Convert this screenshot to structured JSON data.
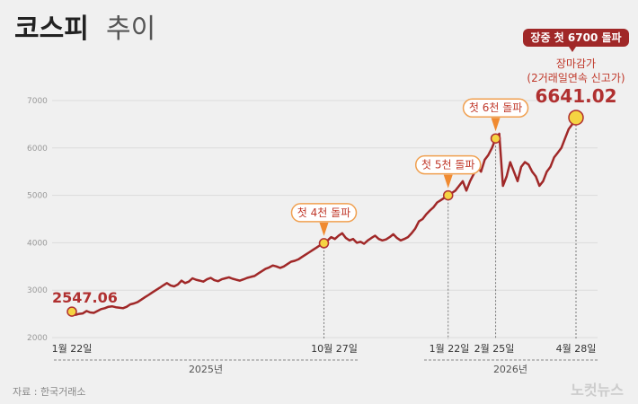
{
  "title": {
    "main": "코스피",
    "sub": "추이"
  },
  "chart_data": {
    "type": "line",
    "ylim": [
      2000,
      7000
    ],
    "yticks": [
      2000,
      3000,
      4000,
      5000,
      6000,
      7000
    ],
    "grid": true,
    "series_color": "#a02828",
    "x_tick_labels": [
      "1월 22일",
      "10월 27일",
      "1월 22일",
      "2월 25일",
      "4월 28일"
    ],
    "year_labels": [
      "2025년",
      "2026년"
    ],
    "series": [
      {
        "values": [
          2547,
          2480,
          2500,
          2510,
          2560,
          2530,
          2520,
          2560,
          2600,
          2620,
          2650,
          2660,
          2640,
          2630,
          2620,
          2650,
          2700,
          2720,
          2750,
          2800,
          2850,
          2900,
          2950,
          3000,
          3050,
          3100,
          3150,
          3100,
          3080,
          3120,
          3200,
          3150,
          3180,
          3250,
          3220,
          3200,
          3180,
          3230,
          3260,
          3210,
          3190,
          3230,
          3250,
          3270,
          3240,
          3220,
          3200,
          3230,
          3260,
          3280,
          3300,
          3350,
          3400,
          3450,
          3480,
          3520,
          3500,
          3470,
          3500,
          3550,
          3600,
          3620,
          3650,
          3700,
          3750,
          3800,
          3850,
          3900,
          3950,
          3990,
          4050,
          4120,
          4080,
          4150,
          4200,
          4100,
          4050,
          4080,
          4000,
          4020,
          3980,
          4050,
          4100,
          4150,
          4080,
          4050,
          4070,
          4120,
          4180,
          4100,
          4050,
          4080,
          4120,
          4200,
          4300,
          4450,
          4500,
          4600,
          4680,
          4750,
          4850,
          4900,
          4950,
          5000,
          5050,
          5100,
          5200,
          5300,
          5100,
          5300,
          5450,
          5600,
          5500,
          5750,
          5850,
          6000,
          6200,
          6300,
          5200,
          5400,
          5700,
          5500,
          5300,
          5600,
          5700,
          5650,
          5500,
          5400,
          5200,
          5300,
          5500,
          5600,
          5800,
          5900,
          6000,
          6200,
          6400,
          6500,
          6641.02
        ]
      }
    ],
    "events": [
      {
        "index": 0,
        "value": "2547.06"
      },
      {
        "index": 69,
        "label": "첫 4천 돌파"
      },
      {
        "index": 103,
        "label": "첫 5천 돌파"
      },
      {
        "index": 116,
        "label": "첫 6천 돌파"
      },
      {
        "index": 138,
        "value": "6641.02"
      }
    ],
    "final_annotation": {
      "badge": "장중 첫 6700 돌파",
      "line1": "장마감가",
      "line2": "(2거래일연속 신고가)",
      "value": "6641.02"
    }
  },
  "footer": {
    "source": "자료 : 한국거래소",
    "logo": "노컷뉴스"
  },
  "colors": {
    "accent": "#b03030",
    "badge": "#a02828",
    "marker": "#f5d442",
    "callout_border": "#f0a050"
  }
}
